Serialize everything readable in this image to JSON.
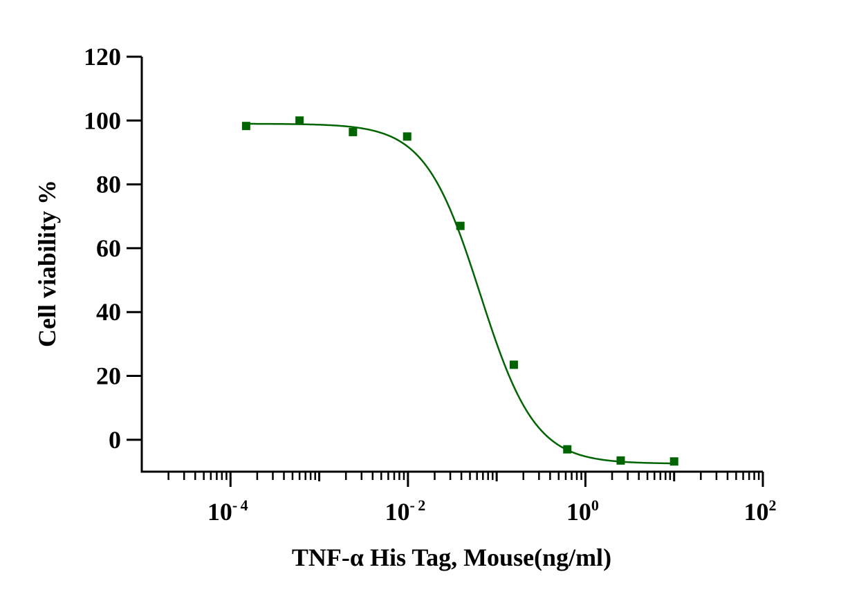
{
  "chart_data": {
    "type": "scatter",
    "xlabel": "TNF-α His Tag, Mouse(ng/ml)",
    "ylabel": "Cell viability %",
    "x_scale": "log10",
    "xlim": [
      1e-05,
      100
    ],
    "ylim": [
      -10,
      120
    ],
    "y_ticks": [
      0,
      20,
      40,
      60,
      80,
      100,
      120
    ],
    "x_ticks": [
      {
        "value": 0.0001,
        "base": "10",
        "exp": "-4"
      },
      {
        "value": 0.01,
        "base": "10",
        "exp": "-2"
      },
      {
        "value": 1,
        "base": "10",
        "exp": "0"
      },
      {
        "value": 100,
        "base": "10",
        "exp": "2"
      }
    ],
    "grid": false,
    "color": "#006400",
    "points": [
      {
        "x": 0.00015,
        "y": 98.3
      },
      {
        "x": 0.0006,
        "y": 100.0
      },
      {
        "x": 0.0024,
        "y": 96.4
      },
      {
        "x": 0.0098,
        "y": 95.0
      },
      {
        "x": 0.039,
        "y": 67.0
      },
      {
        "x": 0.156,
        "y": 23.5
      },
      {
        "x": 0.625,
        "y": -3.0
      },
      {
        "x": 2.5,
        "y": -6.5
      },
      {
        "x": 10.0,
        "y": -6.8
      }
    ],
    "fit": {
      "model": "4PL",
      "top": 99.0,
      "bottom": -7.5,
      "ec50": 0.065,
      "hill": 1.4
    }
  }
}
